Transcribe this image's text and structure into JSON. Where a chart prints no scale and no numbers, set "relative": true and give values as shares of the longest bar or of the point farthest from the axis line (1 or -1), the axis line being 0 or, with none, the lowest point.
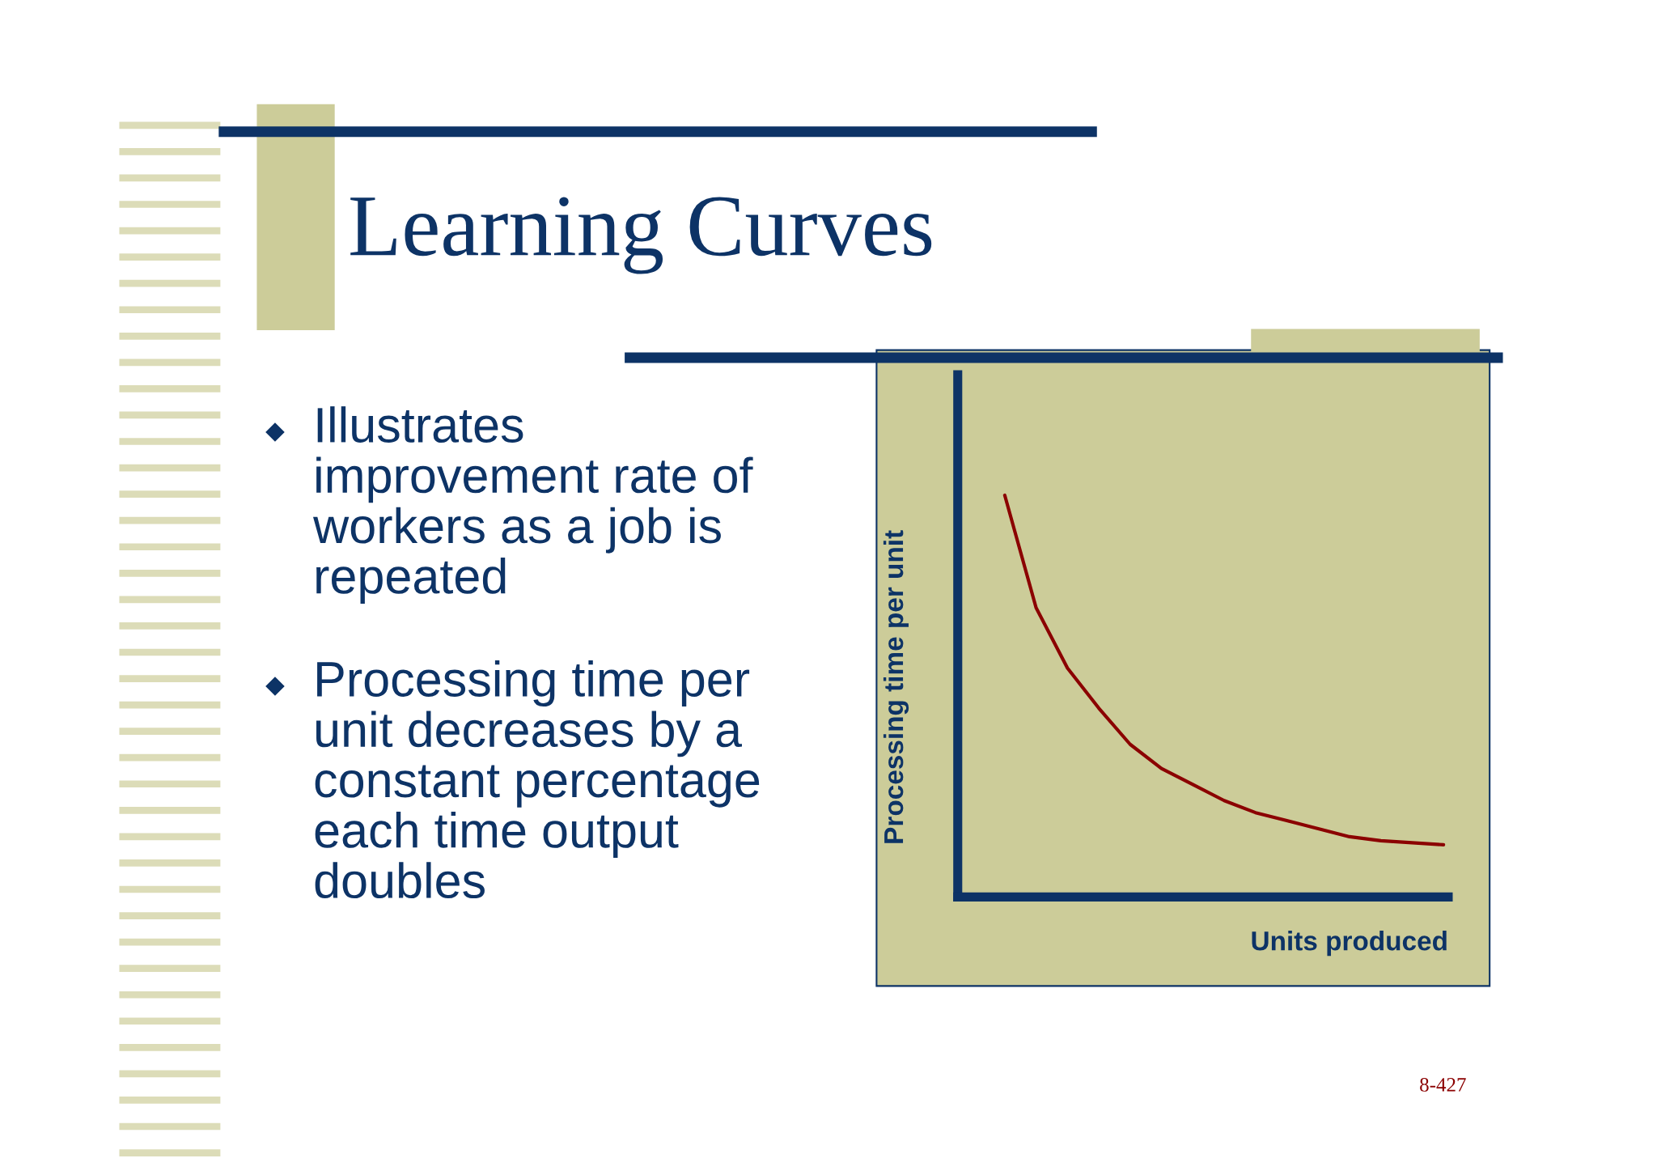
{
  "chart_data": {
    "type": "line",
    "title": "Learning Curves",
    "xlabel": "Units produced",
    "ylabel": "Processing time per unit",
    "annotations": [
      "Illustrates\nimprovement rate of\nworkers as a job is\nrepeated",
      "Processing time per\nunit decreases by a\nconstant percentage\neach time output\ndoubles",
      "8-427"
    ],
    "categories": [
      null,
      null,
      null,
      null,
      null,
      null,
      null,
      null,
      null,
      null,
      null,
      null,
      null,
      null,
      null
    ],
    "series": [
      {
        "color": "#8b0000",
        "values": [
          1.0,
          0.72,
          0.57,
          0.47,
          0.38,
          0.32,
          0.28,
          0.24,
          0.21,
          0.19,
          0.17,
          0.15,
          0.14,
          0.135,
          0.13
        ]
      }
    ],
    "relative": true,
    "tick_labels": false
  }
}
